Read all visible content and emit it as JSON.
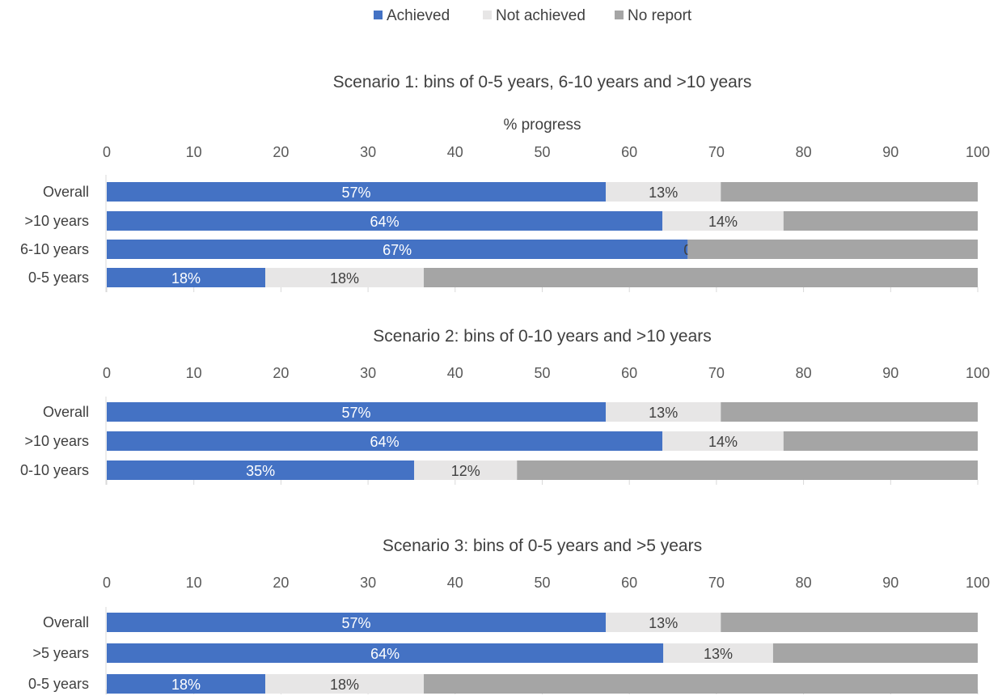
{
  "legend": [
    {
      "name": "Achieved",
      "color": "#4472C4"
    },
    {
      "name": "Not achieved",
      "color": "#E7E6E6"
    },
    {
      "name": "No report",
      "color": "#A5A5A5"
    }
  ],
  "chart_data": [
    {
      "type": "bar",
      "orientation": "horizontal",
      "stacked": true,
      "title": "Scenario 1: bins of 0-5 years, 6-10 years and >10 years",
      "xlabel": "% progress",
      "xlim": [
        0,
        100
      ],
      "xticks": [
        0,
        10,
        20,
        30,
        40,
        50,
        60,
        70,
        80,
        90,
        100
      ],
      "categories": [
        "Overall",
        ">10 years",
        "6-10 years",
        "0-5 years"
      ],
      "series": [
        {
          "name": "Achieved",
          "values": [
            57.3,
            63.8,
            66.7,
            18.2
          ],
          "labels": [
            "57%",
            "64%",
            "67%",
            "18%"
          ]
        },
        {
          "name": "Not achieved",
          "values": [
            13.2,
            13.9,
            0,
            18.2
          ],
          "labels": [
            "13%",
            "14%",
            "0",
            "18%"
          ]
        },
        {
          "name": "No report",
          "values": [
            29.5,
            22.3,
            33.3,
            63.6
          ],
          "labels": [
            "",
            "",
            "",
            ""
          ]
        }
      ],
      "legend": "top"
    },
    {
      "type": "bar",
      "orientation": "horizontal",
      "stacked": true,
      "title": "Scenario 2: bins of 0-10 years and >10 years",
      "xlabel": "",
      "xlim": [
        0,
        100
      ],
      "xticks": [
        0,
        10,
        20,
        30,
        40,
        50,
        60,
        70,
        80,
        90,
        100
      ],
      "categories": [
        "Overall",
        ">10 years",
        "0-10 years"
      ],
      "series": [
        {
          "name": "Achieved",
          "values": [
            57.3,
            63.8,
            35.3
          ],
          "labels": [
            "57%",
            "64%",
            "35%"
          ]
        },
        {
          "name": "Not achieved",
          "values": [
            13.2,
            13.9,
            11.8
          ],
          "labels": [
            "13%",
            "14%",
            "12%"
          ]
        },
        {
          "name": "No report",
          "values": [
            29.5,
            22.3,
            52.9
          ],
          "labels": [
            "",
            "",
            ""
          ]
        }
      ],
      "legend": "top"
    },
    {
      "type": "bar",
      "orientation": "horizontal",
      "stacked": true,
      "title": "Scenario 3: bins of 0-5 years and >5 years",
      "xlabel": "",
      "xlim": [
        0,
        100
      ],
      "xticks": [
        0,
        10,
        20,
        30,
        40,
        50,
        60,
        70,
        80,
        90,
        100
      ],
      "categories": [
        "Overall",
        ">5 years",
        "0-5 years"
      ],
      "series": [
        {
          "name": "Achieved",
          "values": [
            57.3,
            63.9,
            18.2
          ],
          "labels": [
            "57%",
            "64%",
            "18%"
          ]
        },
        {
          "name": "Not achieved",
          "values": [
            13.2,
            12.6,
            18.2
          ],
          "labels": [
            "13%",
            "13%",
            "18%"
          ]
        },
        {
          "name": "No report",
          "values": [
            29.5,
            23.5,
            63.6
          ],
          "labels": [
            "",
            "",
            ""
          ]
        }
      ],
      "legend": "top"
    }
  ]
}
